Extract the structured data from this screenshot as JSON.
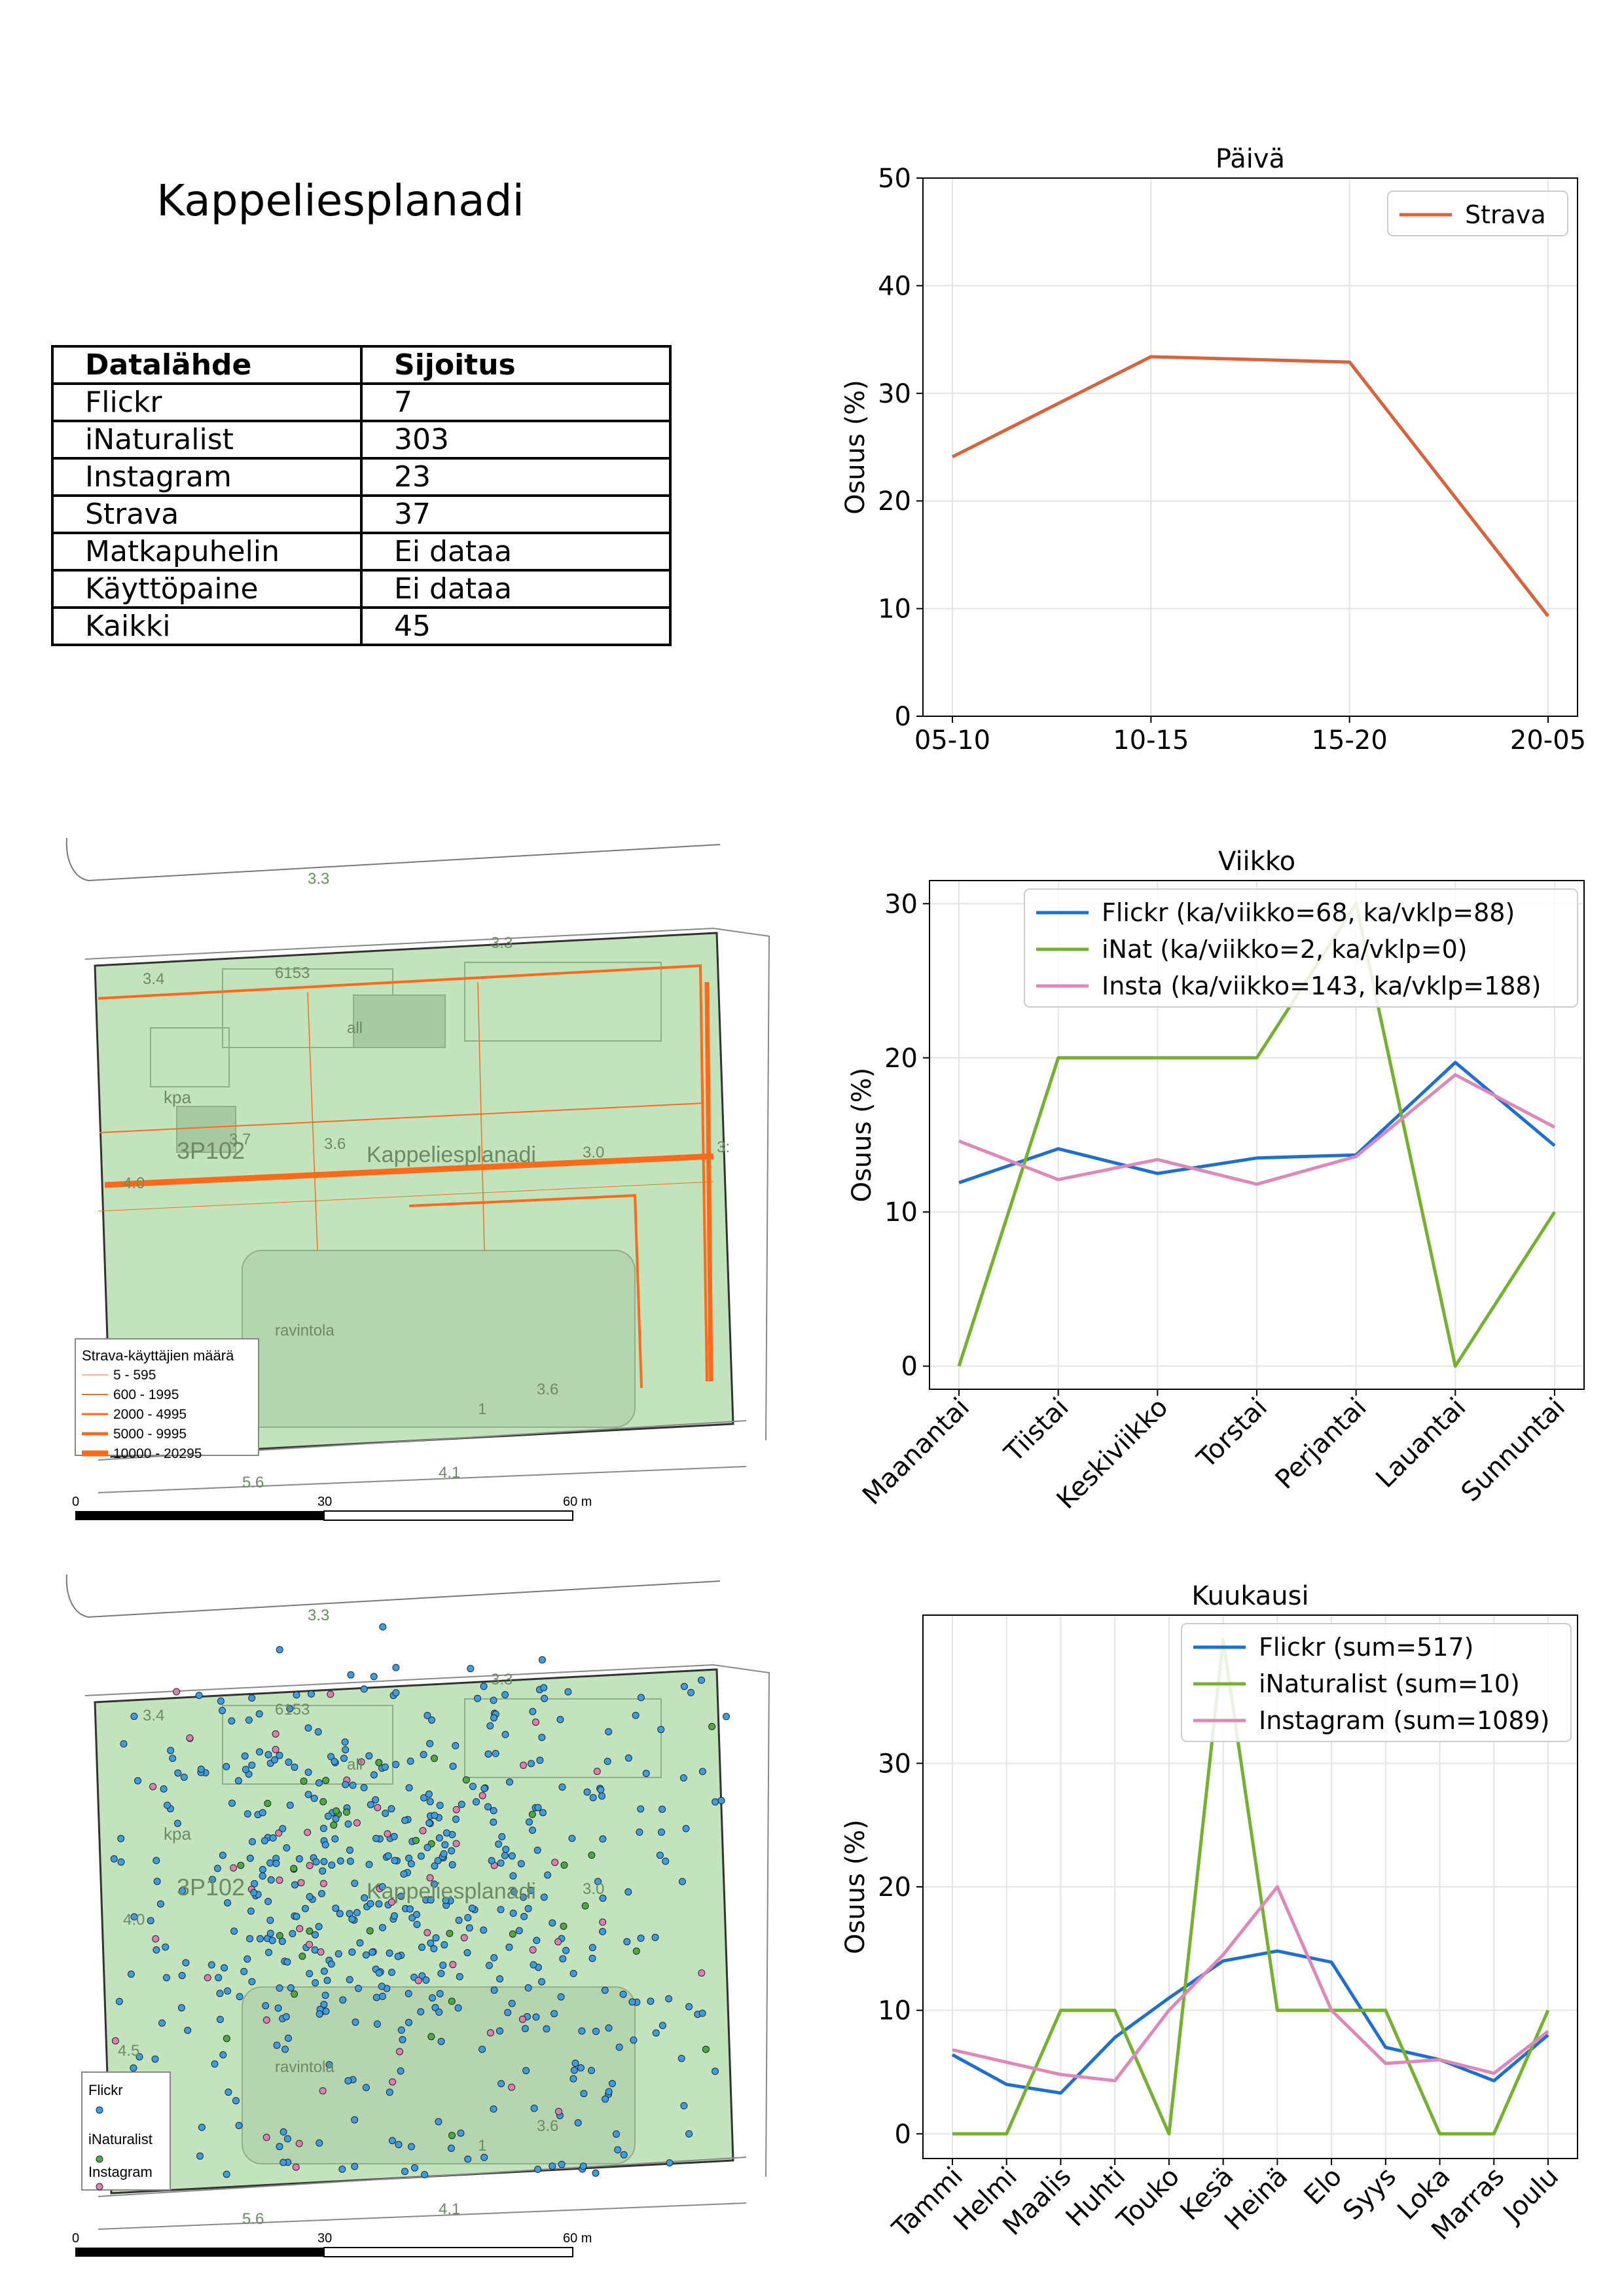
{
  "page": {
    "title": "Kappeliesplanadi"
  },
  "table": {
    "headers": [
      "Datalähde",
      "Sijoitus"
    ],
    "rows": [
      [
        "Flickr",
        "7"
      ],
      [
        "iNaturalist",
        "303"
      ],
      [
        "Instagram",
        "23"
      ],
      [
        "Strava",
        "37"
      ],
      [
        "Matkapuhelin",
        "Ei dataa"
      ],
      [
        "Käyttöpaine",
        "Ei dataa"
      ],
      [
        "Kaikki",
        "45"
      ]
    ]
  },
  "map_strava": {
    "labels": [
      "3.3",
      "3.4",
      "6153",
      "3.3",
      "all",
      "kpa",
      "3P102",
      "3.6",
      "3.7",
      "Kappeliesplanadi",
      "4.0",
      "3.0",
      "ravintola",
      "3.6",
      "1",
      "5.6",
      "4.1",
      "3:"
    ],
    "legend_title": "Strava-käyttäjien määrä",
    "legend_items": [
      "5 - 595",
      "600 - 1995",
      "2000 - 4995",
      "5000 - 9995",
      "10000 - 20295"
    ],
    "scale": {
      "ticks": [
        "0",
        "30",
        "60 m"
      ]
    }
  },
  "map_points": {
    "labels": [
      "3.3",
      "3.4",
      "6153",
      "3.3",
      "all",
      "kpa",
      "3P102",
      "Kappeliesplanadi",
      "4.0",
      "3.0",
      "ravintola",
      "3.6",
      "1",
      "5.6",
      "4.1",
      "rs",
      "4.5"
    ],
    "legend_items": [
      "Flickr",
      "iNaturalist",
      "Instagram"
    ],
    "scale": {
      "ticks": [
        "0",
        "30",
        "60 m"
      ]
    },
    "colors": {
      "flickr": "#3aa0dc",
      "inat": "#4cab3a",
      "insta": "#e07fa8"
    }
  },
  "chart_data": [
    {
      "type": "line",
      "title": "Päivä",
      "ylabel": "Osuus (%)",
      "xlabel": "",
      "categories": [
        "05-10",
        "10-15",
        "15-20",
        "20-05"
      ],
      "ylim": [
        0,
        50
      ],
      "yticks": [
        0,
        10,
        20,
        30,
        40,
        50
      ],
      "grid": true,
      "legend": "top-right",
      "series": [
        {
          "name": "Strava",
          "color": "#d9623b",
          "values": [
            24.1,
            33.4,
            32.9,
            9.3
          ]
        }
      ]
    },
    {
      "type": "line",
      "title": "Viikko",
      "ylabel": "Osuus (%)",
      "xlabel": "",
      "categories": [
        "Maanantai",
        "Tiistai",
        "Keskiviikko",
        "Torstai",
        "Perjantai",
        "Lauantai",
        "Sunnuntai"
      ],
      "ylim": [
        -1.5,
        31.5
      ],
      "yticks": [
        0,
        10,
        20,
        30
      ],
      "grid": true,
      "legend": "top-right",
      "series": [
        {
          "name": "Flickr (ka/viikko=68, ka/vklp=88)",
          "color": "#1f6fd1",
          "values": [
            11.9,
            14.1,
            12.5,
            13.5,
            13.7,
            19.7,
            14.3
          ]
        },
        {
          "name": "iNat (ka/viikko=2, ka/vklp=0)",
          "color": "#74b12e",
          "values": [
            0,
            20,
            20,
            20,
            30,
            0,
            10
          ]
        },
        {
          "name": "Insta (ka/viikko=143, ka/vklp=188)",
          "color": "#dd88b6",
          "values": [
            14.6,
            12.1,
            13.4,
            11.8,
            13.6,
            18.9,
            15.5
          ]
        }
      ]
    },
    {
      "type": "line",
      "title": "Kuukausi",
      "ylabel": "Osuus (%)",
      "xlabel": "",
      "categories": [
        "Tammi",
        "Helmi",
        "Maalis",
        "Huhti",
        "Touko",
        "Kesä",
        "Heinä",
        "Elo",
        "Syys",
        "Loka",
        "Marras",
        "Joulu"
      ],
      "ylim": [
        -2,
        42
      ],
      "yticks": [
        0,
        10,
        20,
        30
      ],
      "grid": true,
      "legend": "top-right",
      "series": [
        {
          "name": "Flickr (sum=517)",
          "color": "#1f6fd1",
          "values": [
            6.4,
            4.0,
            3.3,
            7.8,
            11.0,
            14.0,
            14.8,
            13.9,
            7.0,
            6.0,
            4.3,
            8.0
          ]
        },
        {
          "name": "iNaturalist (sum=10)",
          "color": "#74b12e",
          "values": [
            0,
            0,
            10,
            10,
            0,
            40,
            10,
            10,
            10,
            0,
            0,
            10
          ]
        },
        {
          "name": "Instagram (sum=1089)",
          "color": "#dd88b6",
          "values": [
            6.8,
            5.8,
            4.8,
            4.3,
            10.0,
            14.5,
            20.0,
            10.0,
            5.7,
            6.0,
            4.9,
            8.3
          ]
        }
      ]
    }
  ]
}
